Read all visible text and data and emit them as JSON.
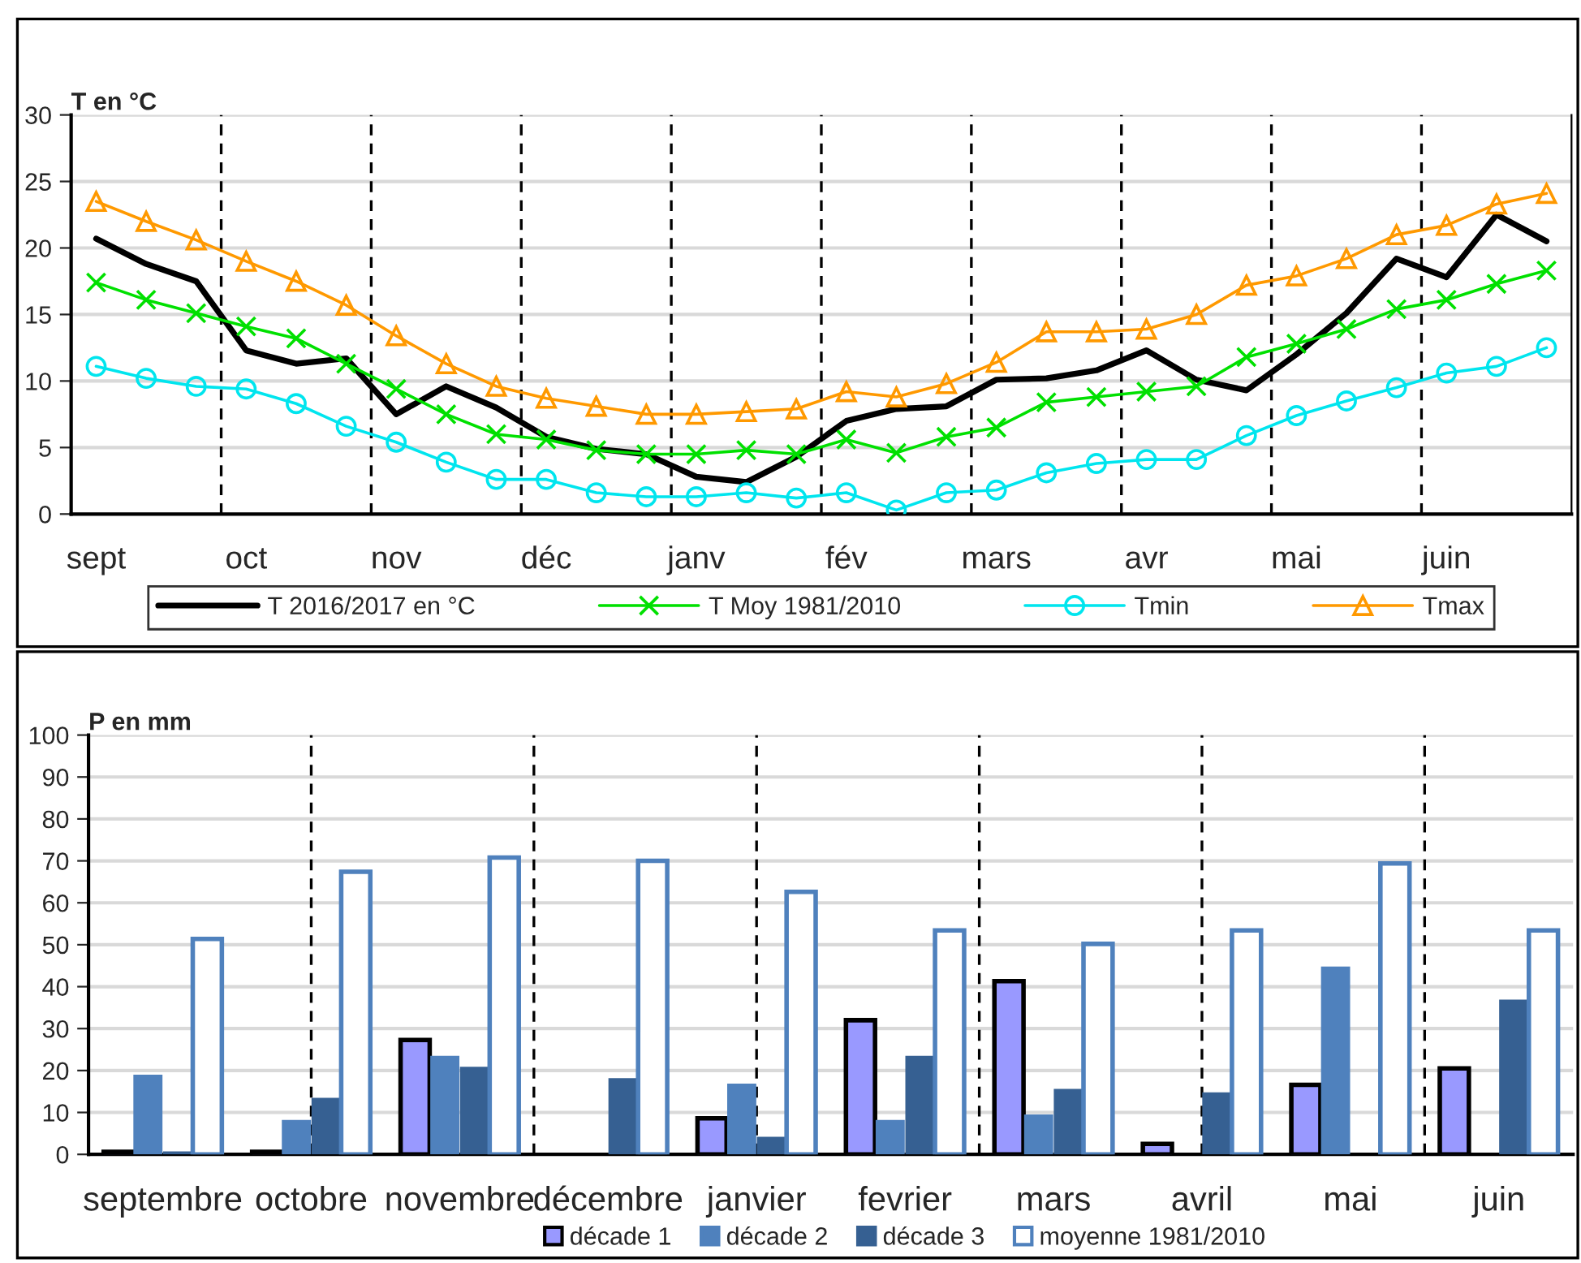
{
  "chart_data": [
    {
      "type": "line",
      "ylabel": "T en °C",
      "categories": [
        "sept",
        null,
        null,
        "oct",
        null,
        null,
        "nov",
        null,
        null,
        "déc",
        null,
        null,
        "janv",
        null,
        null,
        "fév",
        null,
        null,
        "mars",
        null,
        null,
        "avr",
        null,
        null,
        "mai",
        null,
        null,
        "juin",
        null,
        null
      ],
      "series": [
        {
          "name": "T 2016/2017 en °C",
          "color": "#000000",
          "marker": "none",
          "values": [
            20.7,
            18.8,
            17.5,
            12.3,
            11.3,
            11.7,
            7.5,
            9.6,
            8.0,
            5.8,
            4.9,
            4.5,
            2.8,
            2.4,
            4.3,
            7.0,
            7.9,
            8.1,
            10.1,
            10.2,
            10.8,
            12.3,
            10.1,
            9.3,
            12.0,
            15.1,
            19.2,
            17.8,
            22.5,
            20.5
          ]
        },
        {
          "name": "T Moy 1981/2010",
          "color": "#00e000",
          "marker": "cross",
          "values": [
            17.4,
            16.1,
            15.1,
            14.1,
            13.2,
            11.3,
            9.4,
            7.5,
            6.0,
            5.6,
            4.8,
            4.5,
            4.5,
            4.8,
            4.5,
            5.6,
            4.6,
            5.8,
            6.5,
            8.4,
            8.8,
            9.2,
            9.6,
            11.8,
            12.8,
            13.9,
            15.4,
            16.1,
            17.3,
            18.3
          ]
        },
        {
          "name": "Tmin",
          "color": "#00e5ee",
          "marker": "circle",
          "values": [
            11.1,
            10.2,
            9.6,
            9.4,
            8.3,
            6.6,
            5.4,
            3.9,
            2.6,
            2.6,
            1.6,
            1.3,
            1.3,
            1.6,
            1.2,
            1.6,
            0.3,
            1.6,
            1.8,
            3.1,
            3.8,
            4.1,
            4.1,
            5.9,
            7.4,
            8.5,
            9.5,
            10.6,
            11.1,
            12.5
          ]
        },
        {
          "name": "Tmax",
          "color": "#ff9900",
          "marker": "triangle",
          "values": [
            23.5,
            22.0,
            20.6,
            19.0,
            17.5,
            15.7,
            13.4,
            11.3,
            9.6,
            8.7,
            8.1,
            7.5,
            7.5,
            7.7,
            7.9,
            9.2,
            8.8,
            9.8,
            11.4,
            13.7,
            13.7,
            13.9,
            15.0,
            17.2,
            17.9,
            19.2,
            21.0,
            21.7,
            23.3,
            24.1
          ]
        }
      ],
      "ylim": [
        0,
        30
      ],
      "yticks": [
        0,
        5,
        10,
        15,
        20,
        25,
        30
      ],
      "grid": "y",
      "legend": "bottom"
    },
    {
      "type": "bar",
      "ylabel": "P en mm",
      "categories": [
        "septembre",
        "octobre",
        "novembre",
        "décembre",
        "janvier",
        "fevrier",
        "mars",
        "avril",
        "mai",
        "juin"
      ],
      "series": [
        {
          "name": "décade 1",
          "color": "#9999ff",
          "values": [
            0.6,
            0.6,
            27.3,
            null,
            8.6,
            32.0,
            41.3,
            2.5,
            16.6,
            20.5
          ]
        },
        {
          "name": "décade 2",
          "color": "#4f81bd",
          "values": [
            19.0,
            8.2,
            23.5,
            null,
            16.9,
            8.2,
            9.5,
            null,
            44.8,
            null
          ]
        },
        {
          "name": "décade 3",
          "color": "#366092",
          "values": [
            0.7,
            13.5,
            20.9,
            18.2,
            4.2,
            23.5,
            15.6,
            14.8,
            null,
            36.9
          ]
        },
        {
          "name": "moyenne 1981/2010",
          "color": "#ffffff",
          "values": [
            51.4,
            67.4,
            70.8,
            70.0,
            62.6,
            53.4,
            50.2,
            53.4,
            69.4,
            53.4
          ]
        }
      ],
      "ylim": [
        0,
        100
      ],
      "yticks": [
        0,
        10,
        20,
        30,
        40,
        50,
        60,
        70,
        80,
        90,
        100
      ],
      "grid": true,
      "legend": "bottom"
    }
  ]
}
